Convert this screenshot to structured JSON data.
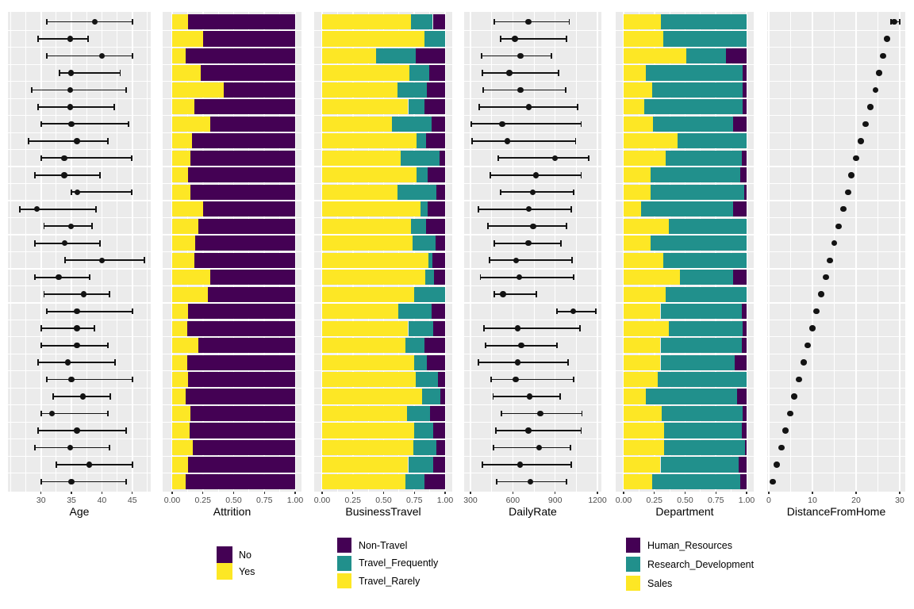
{
  "colors": {
    "yellow": "#FDE725",
    "teal": "#21908C",
    "purple": "#440154",
    "panel_bg": "#EBEBEB",
    "gridline": "#FFFFFF",
    "point": "#131313"
  },
  "chart_data": {
    "type": "faceted_row_summary",
    "n_rows": 28,
    "grid": "on",
    "legend_position": "bottom",
    "facets": [
      {
        "id": "age",
        "title": "Age",
        "kind": "pointrange",
        "domain": [
          24.56,
          48.03
        ],
        "ticks": [
          {
            "v": 30,
            "t": "30"
          },
          {
            "v": 35,
            "t": "35"
          },
          {
            "v": 40,
            "t": "40"
          },
          {
            "v": 45,
            "t": "45"
          }
        ],
        "minor": [
          25,
          27.5,
          32.5,
          37.5,
          42.5,
          47.5
        ]
      },
      {
        "id": "attrition",
        "title": "Attrition",
        "kind": "stacked",
        "domain": [
          -0.0774,
          1.0516
        ],
        "levels": [
          {
            "label": "Yes",
            "color": "#FDE725"
          },
          {
            "label": "No",
            "color": "#440154"
          }
        ],
        "ticks": [
          {
            "v": 0,
            "t": "0.00"
          },
          {
            "v": 0.25,
            "t": "0.25"
          },
          {
            "v": 0.5,
            "t": "0.50"
          },
          {
            "v": 0.75,
            "t": "0.75"
          },
          {
            "v": 1,
            "t": "1.00"
          }
        ],
        "minor": [
          0.125,
          0.375,
          0.625,
          0.875
        ]
      },
      {
        "id": "business_travel",
        "title": "BusinessTravel",
        "kind": "stacked",
        "domain": [
          -0.0645,
          1.058
        ],
        "levels": [
          {
            "label": "Travel_Rarely",
            "color": "#FDE725"
          },
          {
            "label": "Travel_Frequently",
            "color": "#21908C"
          },
          {
            "label": "Non-Travel",
            "color": "#440154"
          }
        ],
        "ticks": [
          {
            "v": 0,
            "t": "0.00"
          },
          {
            "v": 0.25,
            "t": "0.25"
          },
          {
            "v": 0.5,
            "t": "0.50"
          },
          {
            "v": 0.75,
            "t": "0.75"
          },
          {
            "v": 1,
            "t": "1.00"
          }
        ],
        "minor": [
          0.125,
          0.375,
          0.625,
          0.875
        ]
      },
      {
        "id": "daily_rate",
        "title": "DailyRate",
        "kind": "pointrange",
        "domain": [
          255,
          1228
        ],
        "ticks": [
          {
            "v": 300,
            "t": "300"
          },
          {
            "v": 600,
            "t": "600"
          },
          {
            "v": 900,
            "t": "900"
          },
          {
            "v": 1200,
            "t": "1200"
          }
        ],
        "minor": [
          450,
          750,
          1050
        ]
      },
      {
        "id": "department",
        "title": "Department",
        "kind": "stacked",
        "domain": [
          -0.0645,
          1.058
        ],
        "levels": [
          {
            "label": "Sales",
            "color": "#FDE725"
          },
          {
            "label": "Research_Development",
            "color": "#21908C"
          },
          {
            "label": "Human_Resources",
            "color": "#440154"
          }
        ],
        "ticks": [
          {
            "v": 0,
            "t": "0.00"
          },
          {
            "v": 0.25,
            "t": "0.25"
          },
          {
            "v": 0.5,
            "t": "0.50"
          },
          {
            "v": 0.75,
            "t": "0.75"
          },
          {
            "v": 1,
            "t": "1.00"
          }
        ],
        "minor": [
          0.125,
          0.375,
          0.625,
          0.875
        ]
      },
      {
        "id": "distance_from_home",
        "title": "DistanceFromHome",
        "kind": "pointrange",
        "domain": [
          -0.36,
          31.27
        ],
        "ticks": [
          {
            "v": 0,
            "t": "0"
          },
          {
            "v": 10,
            "t": "10"
          },
          {
            "v": 20,
            "t": "20"
          },
          {
            "v": 30,
            "t": "30"
          }
        ],
        "minor": [
          5,
          15,
          25
        ]
      }
    ],
    "rows": [
      {
        "age": [
          38.8,
          31,
          45
        ],
        "attrition": [
          0.13,
          0.87
        ],
        "business_travel": [
          0.72,
          0.18,
          0.1
        ],
        "daily_rate": [
          710,
          470,
          1000
        ],
        "department": [
          0.305,
          0.695,
          0
        ],
        "distance_from_home": [
          28.7,
          28,
          30
        ]
      },
      {
        "age": [
          34.8,
          29.5,
          37.7
        ],
        "attrition": [
          0.25,
          0.75
        ],
        "business_travel": [
          0.83,
          0.17,
          0
        ],
        "daily_rate": [
          615,
          515,
          980
        ],
        "department": [
          0.32,
          0.68,
          0
        ],
        "distance_from_home": [
          27.1
        ]
      },
      {
        "age": [
          40,
          31,
          45
        ],
        "attrition": [
          0.11,
          0.89
        ],
        "business_travel": [
          0.44,
          0.32,
          0.24
        ],
        "daily_rate": [
          655,
          380,
          875
        ],
        "department": [
          0.51,
          0.32,
          0.17
        ],
        "distance_from_home": [
          26.2
        ]
      },
      {
        "age": [
          34.9,
          33,
          43
        ],
        "attrition": [
          0.23,
          0.77
        ],
        "business_travel": [
          0.71,
          0.16,
          0.13
        ],
        "daily_rate": [
          575,
          385,
          925
        ],
        "department": [
          0.18,
          0.785,
          0.035
        ],
        "distance_from_home": [
          25.3
        ]
      },
      {
        "age": [
          34.8,
          28.5,
          44
        ],
        "attrition": [
          0.42,
          0.58
        ],
        "business_travel": [
          0.61,
          0.24,
          0.15
        ],
        "daily_rate": [
          655,
          390,
          975
        ],
        "department": [
          0.23,
          0.735,
          0.035
        ],
        "distance_from_home": [
          24.4
        ]
      },
      {
        "age": [
          34.8,
          29.5,
          42
        ],
        "attrition": [
          0.18,
          0.82
        ],
        "business_travel": [
          0.7,
          0.13,
          0.17
        ],
        "daily_rate": [
          715,
          360,
          1060
        ],
        "department": [
          0.17,
          0.795,
          0.035
        ],
        "distance_from_home": [
          23.3
        ]
      },
      {
        "age": [
          35,
          30,
          44.4
        ],
        "attrition": [
          0.31,
          0.69
        ],
        "business_travel": [
          0.57,
          0.32,
          0.11
        ],
        "daily_rate": [
          525,
          305,
          1085
        ],
        "department": [
          0.24,
          0.65,
          0.11
        ],
        "distance_from_home": [
          22.2
        ]
      },
      {
        "age": [
          35.9,
          28,
          41
        ],
        "attrition": [
          0.16,
          0.84
        ],
        "business_travel": [
          0.77,
          0.075,
          0.155
        ],
        "daily_rate": [
          560,
          310,
          1045
        ],
        "department": [
          0.44,
          0.56,
          0
        ],
        "distance_from_home": [
          21.1
        ]
      },
      {
        "age": [
          33.8,
          30,
          44.9
        ],
        "attrition": [
          0.15,
          0.85
        ],
        "business_travel": [
          0.64,
          0.315,
          0.045
        ],
        "daily_rate": [
          900,
          496,
          1136
        ],
        "department": [
          0.34,
          0.62,
          0.04
        ],
        "distance_from_home": [
          20
        ]
      },
      {
        "age": [
          33.8,
          29,
          39.7
        ],
        "attrition": [
          0.13,
          0.87
        ],
        "business_travel": [
          0.77,
          0.09,
          0.14
        ],
        "daily_rate": [
          765,
          440,
          1085
        ],
        "department": [
          0.22,
          0.73,
          0.05
        ],
        "distance_from_home": [
          18.9
        ]
      },
      {
        "age": [
          36,
          35,
          44.9
        ],
        "attrition": [
          0.15,
          0.85
        ],
        "business_travel": [
          0.61,
          0.32,
          0.07
        ],
        "daily_rate": [
          740,
          515,
          1030
        ],
        "department": [
          0.22,
          0.76,
          0.02
        ],
        "distance_from_home": [
          18.2
        ]
      },
      {
        "age": [
          29.3,
          26.5,
          39
        ],
        "attrition": [
          0.25,
          0.75
        ],
        "business_travel": [
          0.8,
          0.06,
          0.14
        ],
        "daily_rate": [
          715,
          355,
          1015
        ],
        "department": [
          0.14,
          0.75,
          0.11
        ],
        "distance_from_home": [
          17.1
        ]
      },
      {
        "age": [
          34.9,
          30.5,
          38.4
        ],
        "attrition": [
          0.21,
          0.79
        ],
        "business_travel": [
          0.72,
          0.125,
          0.155
        ],
        "daily_rate": [
          745,
          425,
          980
        ],
        "department": [
          0.37,
          0.63,
          0
        ],
        "distance_from_home": [
          16
        ]
      },
      {
        "age": [
          33.9,
          29,
          39.7
        ],
        "attrition": [
          0.19,
          0.81
        ],
        "business_travel": [
          0.735,
          0.185,
          0.08
        ],
        "daily_rate": [
          710,
          470,
          940
        ],
        "department": [
          0.22,
          0.78,
          0
        ],
        "distance_from_home": [
          15
        ]
      },
      {
        "age": [
          40,
          34,
          47
        ],
        "attrition": [
          0.18,
          0.82
        ],
        "business_travel": [
          0.865,
          0.032,
          0.103
        ],
        "daily_rate": [
          625,
          435,
          1020
        ],
        "department": [
          0.32,
          0.68,
          0
        ],
        "distance_from_home": [
          14
        ]
      },
      {
        "age": [
          32.9,
          29,
          38
        ],
        "attrition": [
          0.31,
          0.69
        ],
        "business_travel": [
          0.84,
          0.07,
          0.09
        ],
        "daily_rate": [
          645,
          370,
          1030
        ],
        "department": [
          0.46,
          0.43,
          0.11
        ],
        "distance_from_home": [
          13.1
        ]
      },
      {
        "age": [
          37,
          30.5,
          41.2
        ],
        "attrition": [
          0.29,
          0.71
        ],
        "business_travel": [
          0.75,
          0.25,
          0
        ],
        "daily_rate": [
          530,
          470,
          765
        ],
        "department": [
          0.34,
          0.66,
          0
        ],
        "distance_from_home": [
          12
        ]
      },
      {
        "age": [
          35.9,
          31,
          45
        ],
        "attrition": [
          0.13,
          0.87
        ],
        "business_travel": [
          0.62,
          0.27,
          0.11
        ],
        "daily_rate": [
          1030,
          915,
          1190
        ],
        "department": [
          0.3,
          0.66,
          0.04
        ],
        "distance_from_home": [
          10.9
        ]
      },
      {
        "age": [
          35.9,
          30,
          38.8
        ],
        "attrition": [
          0.12,
          0.88
        ],
        "business_travel": [
          0.7,
          0.2,
          0.1
        ],
        "daily_rate": [
          635,
          395,
          1075
        ],
        "department": [
          0.37,
          0.6,
          0.03
        ],
        "distance_from_home": [
          10
        ]
      },
      {
        "age": [
          35.9,
          30,
          41
        ],
        "attrition": [
          0.21,
          0.79
        ],
        "business_travel": [
          0.675,
          0.155,
          0.17
        ],
        "daily_rate": [
          660,
          405,
          915
        ],
        "department": [
          0.3,
          0.66,
          0.04
        ],
        "distance_from_home": [
          8.9
        ]
      },
      {
        "age": [
          34.4,
          29.5,
          42.2
        ],
        "attrition": [
          0.12,
          0.88
        ],
        "business_travel": [
          0.75,
          0.1,
          0.15
        ],
        "daily_rate": [
          635,
          355,
          990
        ],
        "department": [
          0.3,
          0.6,
          0.1
        ],
        "distance_from_home": [
          8
        ]
      },
      {
        "age": [
          35,
          31,
          45
        ],
        "attrition": [
          0.13,
          0.87
        ],
        "business_travel": [
          0.76,
          0.185,
          0.055
        ],
        "daily_rate": [
          620,
          445,
          1030
        ],
        "department": [
          0.28,
          0.72,
          0
        ],
        "distance_from_home": [
          6.9
        ]
      },
      {
        "age": [
          36.9,
          32,
          41.4
        ],
        "attrition": [
          0.11,
          0.89
        ],
        "business_travel": [
          0.81,
          0.15,
          0.04
        ],
        "daily_rate": [
          720,
          460,
          935
        ],
        "department": [
          0.18,
          0.74,
          0.08
        ],
        "distance_from_home": [
          5.8
        ]
      },
      {
        "age": [
          31.8,
          30,
          41
        ],
        "attrition": [
          0.15,
          0.85
        ],
        "business_travel": [
          0.69,
          0.19,
          0.12
        ],
        "daily_rate": [
          795,
          520,
          1090
        ],
        "department": [
          0.31,
          0.655,
          0.035
        ],
        "distance_from_home": [
          4.9
        ]
      },
      {
        "age": [
          35.9,
          29.5,
          44
        ],
        "attrition": [
          0.14,
          0.86
        ],
        "business_travel": [
          0.75,
          0.15,
          0.1
        ],
        "daily_rate": [
          710,
          480,
          1085
        ],
        "department": [
          0.33,
          0.63,
          0.04
        ],
        "distance_from_home": [
          3.8
        ]
      },
      {
        "age": [
          34.8,
          29,
          41.2
        ],
        "attrition": [
          0.17,
          0.83
        ],
        "business_travel": [
          0.74,
          0.19,
          0.07
        ],
        "daily_rate": [
          785,
          465,
          1010
        ],
        "department": [
          0.33,
          0.655,
          0.015
        ],
        "distance_from_home": [
          2.9
        ]
      },
      {
        "age": [
          37.9,
          32.5,
          45
        ],
        "attrition": [
          0.13,
          0.87
        ],
        "business_travel": [
          0.7,
          0.2,
          0.1
        ],
        "daily_rate": [
          650,
          385,
          1015
        ],
        "department": [
          0.3,
          0.635,
          0.065
        ],
        "distance_from_home": [
          1.8
        ]
      },
      {
        "age": [
          35,
          30,
          44
        ],
        "attrition": [
          0.11,
          0.89
        ],
        "business_travel": [
          0.68,
          0.155,
          0.165
        ],
        "daily_rate": [
          725,
          485,
          980
        ],
        "department": [
          0.23,
          0.72,
          0.05
        ],
        "distance_from_home": [
          0.9
        ]
      }
    ],
    "legends": [
      {
        "id": "attrition",
        "entries": [
          {
            "label": "No",
            "color": "#440154"
          },
          {
            "label": "Yes",
            "color": "#FDE725"
          }
        ]
      },
      {
        "id": "business_travel",
        "entries": [
          {
            "label": "Non-Travel",
            "color": "#440154"
          },
          {
            "label": "Travel_Frequently",
            "color": "#21908C"
          },
          {
            "label": "Travel_Rarely",
            "color": "#FDE725"
          }
        ]
      },
      {
        "id": "department",
        "entries": [
          {
            "label": "Human_Resources",
            "color": "#440154"
          },
          {
            "label": "Research_Development",
            "color": "#21908C"
          },
          {
            "label": "Sales",
            "color": "#FDE725"
          }
        ]
      }
    ]
  }
}
